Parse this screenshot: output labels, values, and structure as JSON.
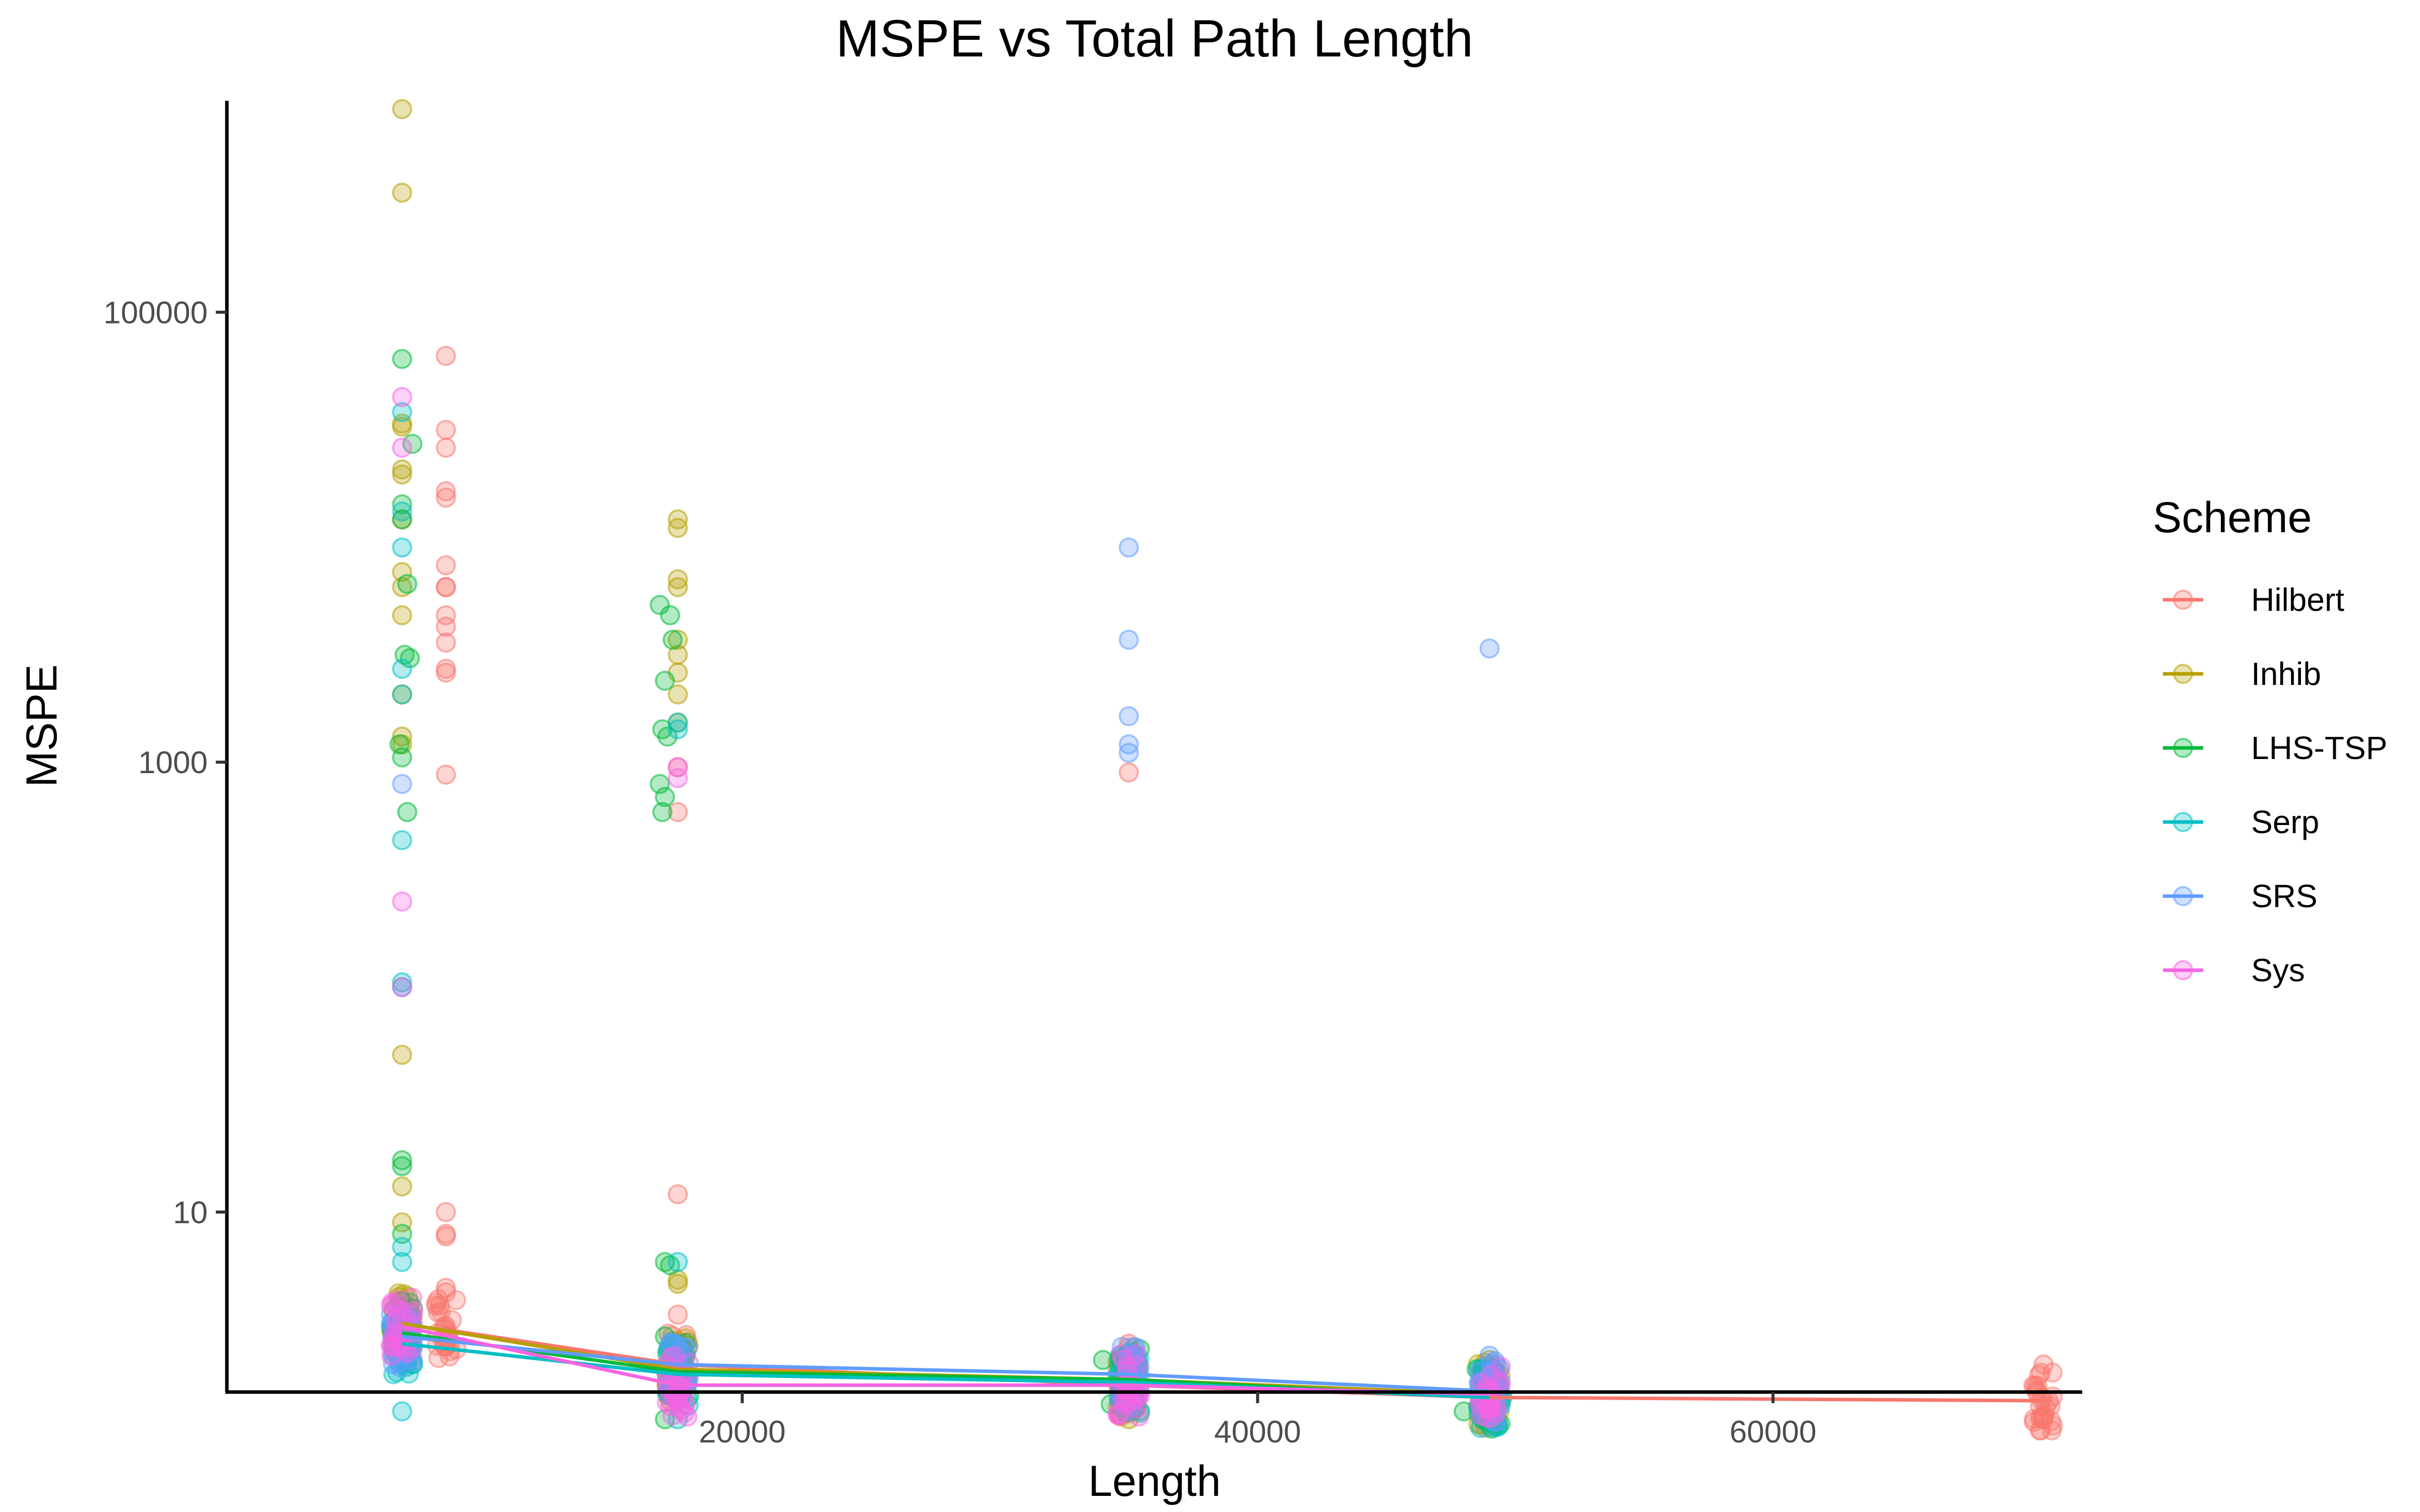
{
  "chart_data": {
    "type": "scatter",
    "title": "MSPE vs Total Path Length",
    "xlabel": "Length",
    "ylabel": "MSPE",
    "x_ticks": [
      20000,
      40000,
      60000
    ],
    "x_tick_labels": [
      "20000",
      "40000",
      "60000"
    ],
    "xlim": [
      0,
      72000
    ],
    "y_scale": "log",
    "y_ticks": [
      10,
      1000,
      100000
    ],
    "y_tick_labels": [
      "10",
      "1000",
      "100000"
    ],
    "ylim_log10": [
      0.2,
      5.94
    ],
    "grid": false,
    "legend": {
      "title": "Scheme",
      "position": "right"
    },
    "point_alpha": 0.3,
    "series": [
      {
        "name": "Hilbert",
        "color": "#F8766D",
        "line": [
          [
            8500,
            3.0
          ],
          [
            17500,
            2.1
          ],
          [
            35000,
            1.7
          ],
          [
            49000,
            1.5
          ],
          [
            70500,
            1.45
          ]
        ],
        "points": [
          [
            8500,
            64000
          ],
          [
            8500,
            30000
          ],
          [
            8500,
            25000
          ],
          [
            8500,
            16000
          ],
          [
            8500,
            15000
          ],
          [
            8500,
            7500
          ],
          [
            8500,
            6000
          ],
          [
            8500,
            6000
          ],
          [
            8500,
            4500
          ],
          [
            8500,
            4000
          ],
          [
            8500,
            3400
          ],
          [
            8500,
            2600
          ],
          [
            8500,
            2500
          ],
          [
            8500,
            880
          ],
          [
            8500,
            10
          ],
          [
            8500,
            8
          ],
          [
            8500,
            7.8
          ],
          [
            8500,
            4.6
          ],
          [
            8500,
            4.4
          ],
          [
            17500,
            600
          ],
          [
            17500,
            950
          ],
          [
            17500,
            12
          ],
          [
            17500,
            3.5
          ],
          [
            35000,
            900
          ],
          [
            35000,
            2.6
          ],
          [
            35000,
            2.5
          ],
          [
            70500,
            2.1
          ],
          [
            70500,
            1.2
          ]
        ]
      },
      {
        "name": "Inhib",
        "color": "#B79F00",
        "line": [
          [
            6800,
            3.2
          ],
          [
            17500,
            2.0
          ],
          [
            35000,
            1.8
          ],
          [
            49000,
            1.55
          ]
        ],
        "points": [
          [
            6800,
            800000
          ],
          [
            6800,
            340000
          ],
          [
            6800,
            32000
          ],
          [
            6800,
            31000
          ],
          [
            6800,
            20000
          ],
          [
            6800,
            19000
          ],
          [
            6800,
            12000
          ],
          [
            6800,
            7000
          ],
          [
            6800,
            6000
          ],
          [
            6800,
            4500
          ],
          [
            6800,
            2000
          ],
          [
            6800,
            1300
          ],
          [
            6800,
            1200
          ],
          [
            6800,
            50
          ],
          [
            6800,
            13
          ],
          [
            6800,
            9
          ],
          [
            17500,
            12000
          ],
          [
            17500,
            11000
          ],
          [
            17500,
            6500
          ],
          [
            17500,
            6000
          ],
          [
            17500,
            3500
          ],
          [
            17500,
            3000
          ],
          [
            17500,
            2500
          ],
          [
            17500,
            2000
          ],
          [
            17500,
            1500
          ],
          [
            17500,
            5
          ],
          [
            17500,
            4.8
          ],
          [
            35000,
            1.2
          ],
          [
            49000,
            2.2
          ],
          [
            49000,
            1.2
          ]
        ]
      },
      {
        "name": "LHS-TSP",
        "color": "#00BA38",
        "line": [
          [
            6800,
            2.9
          ],
          [
            17500,
            1.95
          ],
          [
            35000,
            1.8
          ],
          [
            49000,
            1.5
          ]
        ],
        "points": [
          [
            6800,
            62000
          ],
          [
            7200,
            26000
          ],
          [
            6800,
            14000
          ],
          [
            6800,
            12000
          ],
          [
            7000,
            6200
          ],
          [
            6900,
            3000
          ],
          [
            7100,
            2900
          ],
          [
            6700,
            1200
          ],
          [
            6800,
            1050
          ],
          [
            7000,
            600
          ],
          [
            6800,
            17
          ],
          [
            6800,
            16
          ],
          [
            6800,
            8
          ],
          [
            6800,
            4
          ],
          [
            6700,
            3
          ],
          [
            6900,
            2.5
          ],
          [
            16800,
            5000
          ],
          [
            17200,
            4500
          ],
          [
            17000,
            2300
          ],
          [
            17300,
            3500
          ],
          [
            16900,
            1400
          ],
          [
            17100,
            1300
          ],
          [
            16800,
            800
          ],
          [
            17000,
            700
          ],
          [
            16900,
            600
          ],
          [
            17000,
            6
          ],
          [
            17200,
            5.8
          ],
          [
            17000,
            2.8
          ],
          [
            17000,
            1.2
          ],
          [
            34000,
            2.2
          ],
          [
            34300,
            1.4
          ],
          [
            35000,
            1.8
          ],
          [
            48000,
            1.3
          ],
          [
            49000,
            1.2
          ],
          [
            49500,
            1.5
          ],
          [
            48500,
            2.0
          ]
        ]
      },
      {
        "name": "Serp",
        "color": "#00BFC4",
        "line": [
          [
            6800,
            2.6
          ],
          [
            17500,
            1.9
          ],
          [
            35000,
            1.75
          ],
          [
            49000,
            1.5
          ]
        ],
        "points": [
          [
            6800,
            36000
          ],
          [
            6800,
            13000
          ],
          [
            6800,
            9000
          ],
          [
            6800,
            2600
          ],
          [
            6800,
            2000
          ],
          [
            6800,
            450
          ],
          [
            6800,
            105
          ],
          [
            6800,
            100
          ],
          [
            6800,
            7
          ],
          [
            6800,
            6
          ],
          [
            6800,
            1.3
          ],
          [
            17500,
            1500
          ],
          [
            17500,
            1400
          ],
          [
            17500,
            6
          ],
          [
            17500,
            1.2
          ],
          [
            35000,
            1.8
          ],
          [
            49000,
            1.5
          ]
        ]
      },
      {
        "name": "SRS",
        "color": "#619CFF",
        "line": [
          [
            6800,
            2.8
          ],
          [
            17500,
            2.1
          ],
          [
            35000,
            1.9
          ],
          [
            49000,
            1.6
          ]
        ],
        "points": [
          [
            6800,
            800
          ],
          [
            35000,
            9000
          ],
          [
            35000,
            3500
          ],
          [
            35000,
            1600
          ],
          [
            35000,
            1200
          ],
          [
            35000,
            1100
          ],
          [
            49000,
            3200
          ],
          [
            49000,
            2.3
          ],
          [
            17500,
            2.0
          ]
        ]
      },
      {
        "name": "Sys",
        "color": "#F564E3",
        "line": [
          [
            6800,
            3.1
          ],
          [
            17500,
            1.7
          ],
          [
            35000,
            1.7
          ],
          [
            49000,
            1.55
          ]
        ],
        "points": [
          [
            6800,
            42000
          ],
          [
            6800,
            25000
          ],
          [
            6800,
            240
          ],
          [
            6800,
            100
          ],
          [
            17500,
            950
          ],
          [
            17500,
            850
          ],
          [
            17500,
            1.7
          ],
          [
            35000,
            1.6
          ]
        ]
      }
    ]
  }
}
